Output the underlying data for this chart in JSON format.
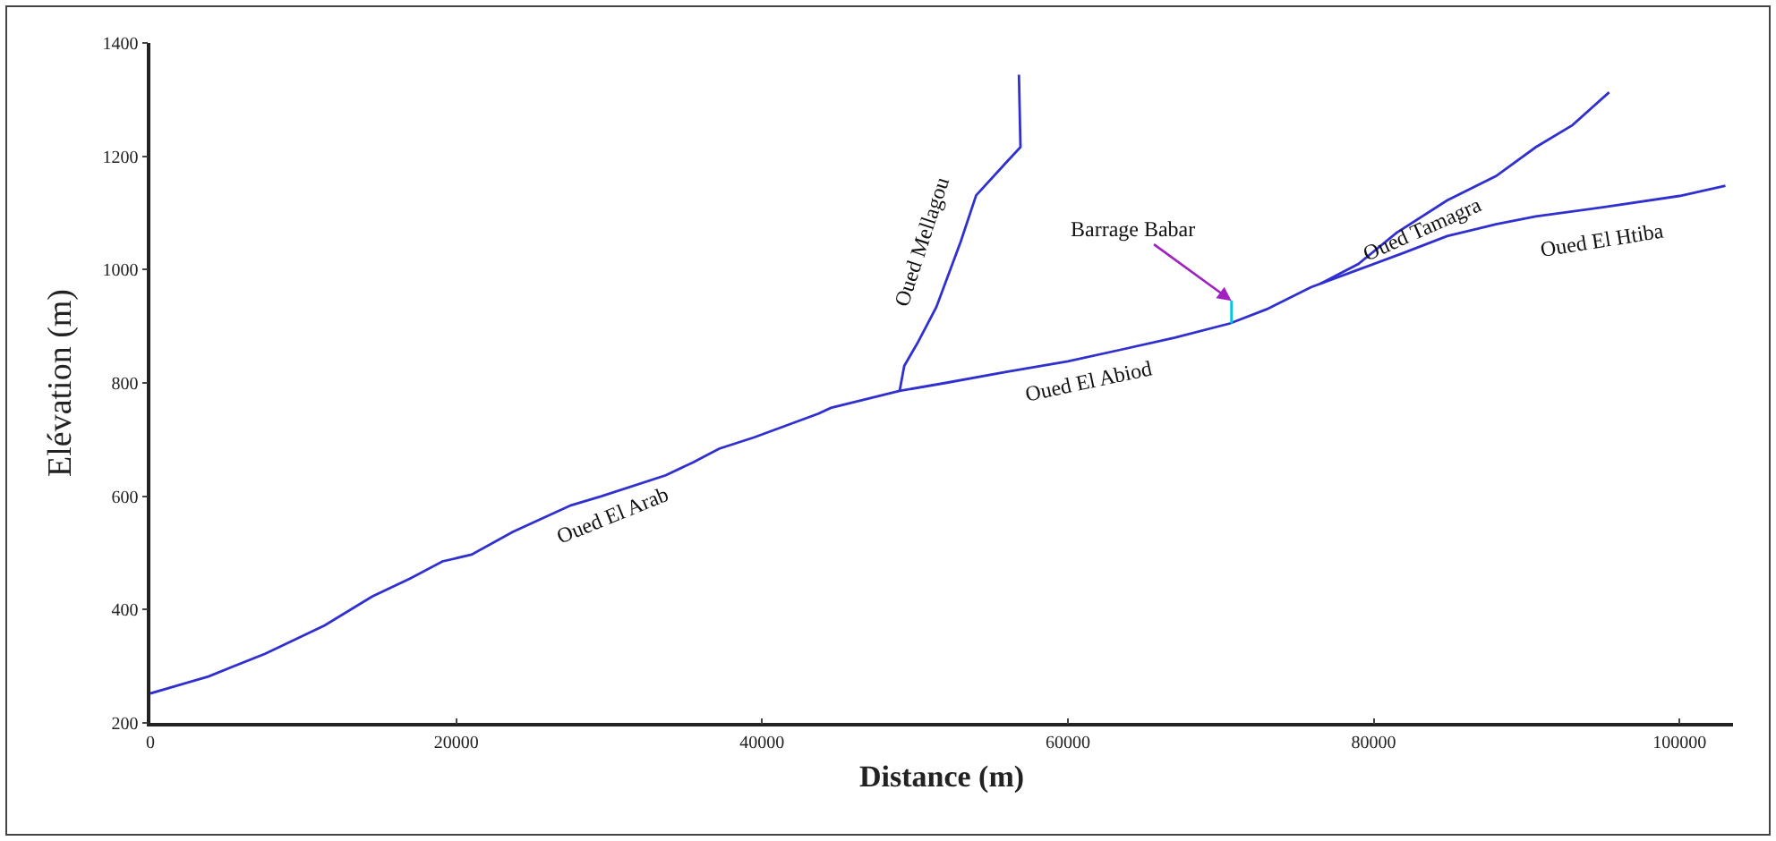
{
  "chart_data": {
    "type": "line",
    "xlabel": "Distance (m)",
    "ylabel": "Elévation (m)",
    "xlim": [
      0,
      103500
    ],
    "ylim": [
      200,
      1400
    ],
    "xticks": [
      0,
      20000,
      40000,
      60000,
      80000,
      100000
    ],
    "yticks": [
      200,
      400,
      600,
      800,
      1000,
      1200,
      1400
    ],
    "grid": false,
    "legend": false,
    "marker": "none",
    "line_style": "solid",
    "series": [
      {
        "color": "#3030d0",
        "x": [
          0,
          3800,
          7500,
          11400,
          14500,
          17000,
          19100,
          21000,
          23700,
          27500,
          29500,
          33700,
          35500,
          37200,
          39500,
          43700,
          44500,
          49000,
          52000,
          55900,
          60000,
          63700,
          67000,
          70600,
          73000,
          75900,
          79000,
          82000,
          84800,
          88000,
          90600,
          95000,
          100000,
          103000
        ],
        "values": [
          252,
          282,
          322,
          372,
          423,
          455,
          485,
          497,
          537,
          584,
          600,
          637,
          660,
          684,
          704,
          746,
          756,
          786,
          800,
          819,
          838,
          860,
          880,
          905,
          930,
          969,
          1000,
          1030,
          1059,
          1080,
          1094,
          1110,
          1130,
          1148
        ]
      },
      {
        "name": "Oued Mellagou",
        "color": "#3030d0",
        "x": [
          49000,
          49300,
          50200,
          51400,
          53000,
          54000,
          56000,
          56900,
          56800
        ],
        "values": [
          786,
          830,
          872,
          934,
          1050,
          1131,
          1190,
          1216,
          1344
        ]
      },
      {
        "name": "Oued Tamagra",
        "color": "#3030d0",
        "x": [
          76500,
          79000,
          81500,
          84800,
          88000,
          90600,
          93000,
          95400
        ],
        "values": [
          975,
          1010,
          1065,
          1122,
          1165,
          1216,
          1255,
          1313
        ]
      },
      {
        "color": "#00c8e0",
        "x": [
          70700,
          70700
        ],
        "values": [
          905,
          945
        ]
      }
    ],
    "annotations": [
      {
        "text": "Barrage Babar",
        "x": 70700,
        "y": 945
      },
      {
        "text": "Oued El Arab",
        "x": 33700,
        "y": 637
      },
      {
        "text": "Oued El Abiod",
        "x": 63700,
        "y": 860
      },
      {
        "text": "Oued El Htiba",
        "x": 95000,
        "y": 1110
      }
    ]
  }
}
